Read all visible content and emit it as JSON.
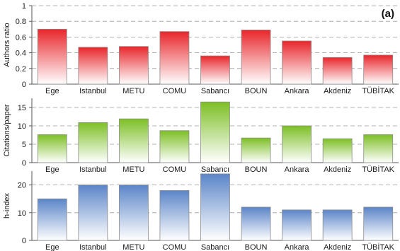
{
  "panel_label": "(a)",
  "chart_data": [
    {
      "type": "bar",
      "categories": [
        "Ege",
        "Istanbul",
        "METU",
        "COMU",
        "Sabancı",
        "BOUN",
        "Ankara",
        "Akdeniz",
        "TÜBİTAK"
      ],
      "values": [
        0.7,
        0.47,
        0.48,
        0.67,
        0.36,
        0.69,
        0.55,
        0.34,
        0.37
      ],
      "ylabel": "Authors ratio",
      "ylim": [
        0,
        1
      ],
      "yticks": [
        "0",
        "0.2",
        "0.4",
        "0.6",
        "0.8",
        "1"
      ],
      "ytick_values": [
        0,
        0.2,
        0.4,
        0.6,
        0.8,
        1
      ],
      "grid": true,
      "color": "#e8262b"
    },
    {
      "type": "bar",
      "categories": [
        "Ege",
        "Istanbul",
        "METU",
        "COMU",
        "Sabancı",
        "BOUN",
        "Ankara",
        "Akdeniz",
        "TÜBİTAK"
      ],
      "values": [
        7.6,
        10.9,
        11.9,
        8.7,
        16.5,
        6.7,
        10.0,
        6.5,
        7.6
      ],
      "ylabel": "Citations/paper",
      "ylim": [
        0,
        17.5
      ],
      "yticks": [
        "0",
        "5",
        "10",
        "15"
      ],
      "ytick_values": [
        0,
        5,
        10,
        15
      ],
      "grid": true,
      "color": "#7dbf25"
    },
    {
      "type": "bar",
      "categories": [
        "Ege",
        "Istanbul",
        "METU",
        "COMU",
        "Sabancı",
        "BOUN",
        "Ankara",
        "Akdeniz",
        "TÜBİTAK"
      ],
      "values": [
        15,
        20,
        20,
        18,
        24,
        12,
        11,
        11,
        12
      ],
      "ylabel": "h-index",
      "ylim": [
        0,
        25
      ],
      "yticks": [
        "0",
        "10",
        "20"
      ],
      "ytick_values": [
        0,
        10,
        20
      ],
      "grid": true,
      "color": "#5b85c8"
    }
  ]
}
